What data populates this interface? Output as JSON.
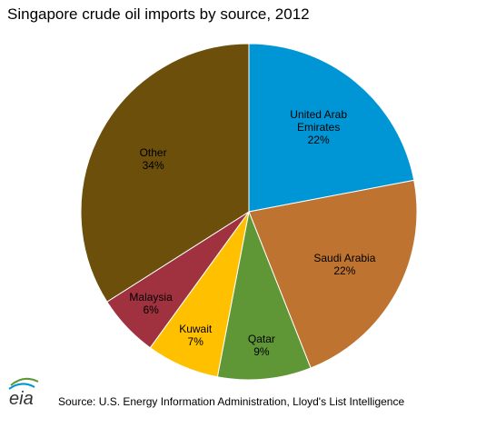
{
  "chart_data": {
    "type": "pie",
    "title": "Singapore crude oil imports by source, 2012",
    "categories": [
      "United Arab Emirates",
      "Saudi Arabia",
      "Qatar",
      "Kuwait",
      "Malaysia",
      "Other"
    ],
    "values": [
      22,
      22,
      9,
      7,
      6,
      34
    ],
    "value_labels": [
      "22%",
      "22%",
      "9%",
      "7%",
      "6%",
      "34%"
    ],
    "colors": [
      "#0096d6",
      "#be7430",
      "#5f9636",
      "#ffc000",
      "#a0313f",
      "#6b4f0b"
    ],
    "logo": "eia",
    "source": "Source: U.S. Energy Information Administration, Lloyd's List Intelligence"
  }
}
